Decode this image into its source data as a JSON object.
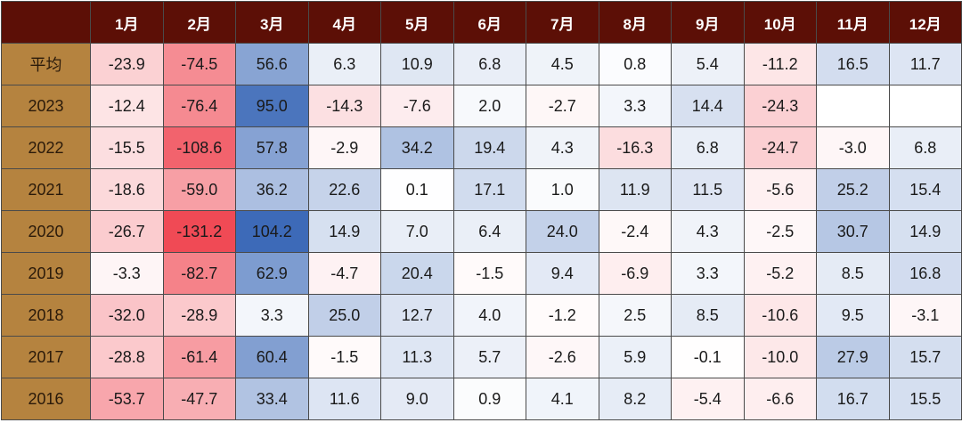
{
  "chart_data": {
    "type": "heatmap",
    "columns": [
      "1月",
      "2月",
      "3月",
      "4月",
      "5月",
      "6月",
      "7月",
      "8月",
      "9月",
      "10月",
      "11月",
      "12月"
    ],
    "rows": [
      {
        "label": "平均",
        "values": [
          -23.9,
          -74.5,
          56.6,
          6.3,
          10.9,
          6.8,
          4.5,
          0.8,
          5.4,
          -11.2,
          16.5,
          11.7
        ]
      },
      {
        "label": "2023",
        "values": [
          -12.4,
          -76.4,
          95.0,
          -14.3,
          -7.6,
          2.0,
          -2.7,
          3.3,
          14.4,
          -24.3,
          null,
          null
        ]
      },
      {
        "label": "2022",
        "values": [
          -15.5,
          -108.6,
          57.8,
          -2.9,
          34.2,
          19.4,
          4.3,
          -16.3,
          6.8,
          -24.7,
          -3.0,
          6.8
        ]
      },
      {
        "label": "2021",
        "values": [
          -18.6,
          -59.0,
          36.2,
          22.6,
          0.1,
          17.1,
          1.0,
          11.9,
          11.5,
          -5.6,
          25.2,
          15.4
        ]
      },
      {
        "label": "2020",
        "values": [
          -26.7,
          -131.2,
          104.2,
          14.9,
          7.0,
          6.4,
          24.0,
          -2.4,
          4.3,
          -2.5,
          30.7,
          14.9
        ]
      },
      {
        "label": "2019",
        "values": [
          -3.3,
          -82.7,
          62.9,
          -4.7,
          20.4,
          -1.5,
          9.4,
          -6.9,
          3.3,
          -5.2,
          8.5,
          16.8
        ]
      },
      {
        "label": "2018",
        "values": [
          -32.0,
          -28.9,
          3.3,
          25.0,
          12.7,
          4.0,
          -1.2,
          2.5,
          8.5,
          -10.6,
          9.5,
          -3.1
        ]
      },
      {
        "label": "2017",
        "values": [
          -28.8,
          -61.4,
          60.4,
          -1.5,
          11.3,
          5.7,
          -2.6,
          5.9,
          -0.1,
          -10.0,
          27.9,
          15.7
        ]
      },
      {
        "label": "2016",
        "values": [
          -53.7,
          -47.7,
          33.4,
          11.6,
          9.0,
          0.9,
          4.1,
          8.2,
          -5.4,
          -6.6,
          16.7,
          15.5
        ]
      }
    ],
    "color_scale": {
      "negative": "#f04a55",
      "neutral": "#ffffff",
      "positive": "#3d6ab8",
      "min": -131.2,
      "max": 104.2
    },
    "header_color": "#5c0f06",
    "row_label_color": "#b5833f",
    "value_format": "one-decimal"
  }
}
